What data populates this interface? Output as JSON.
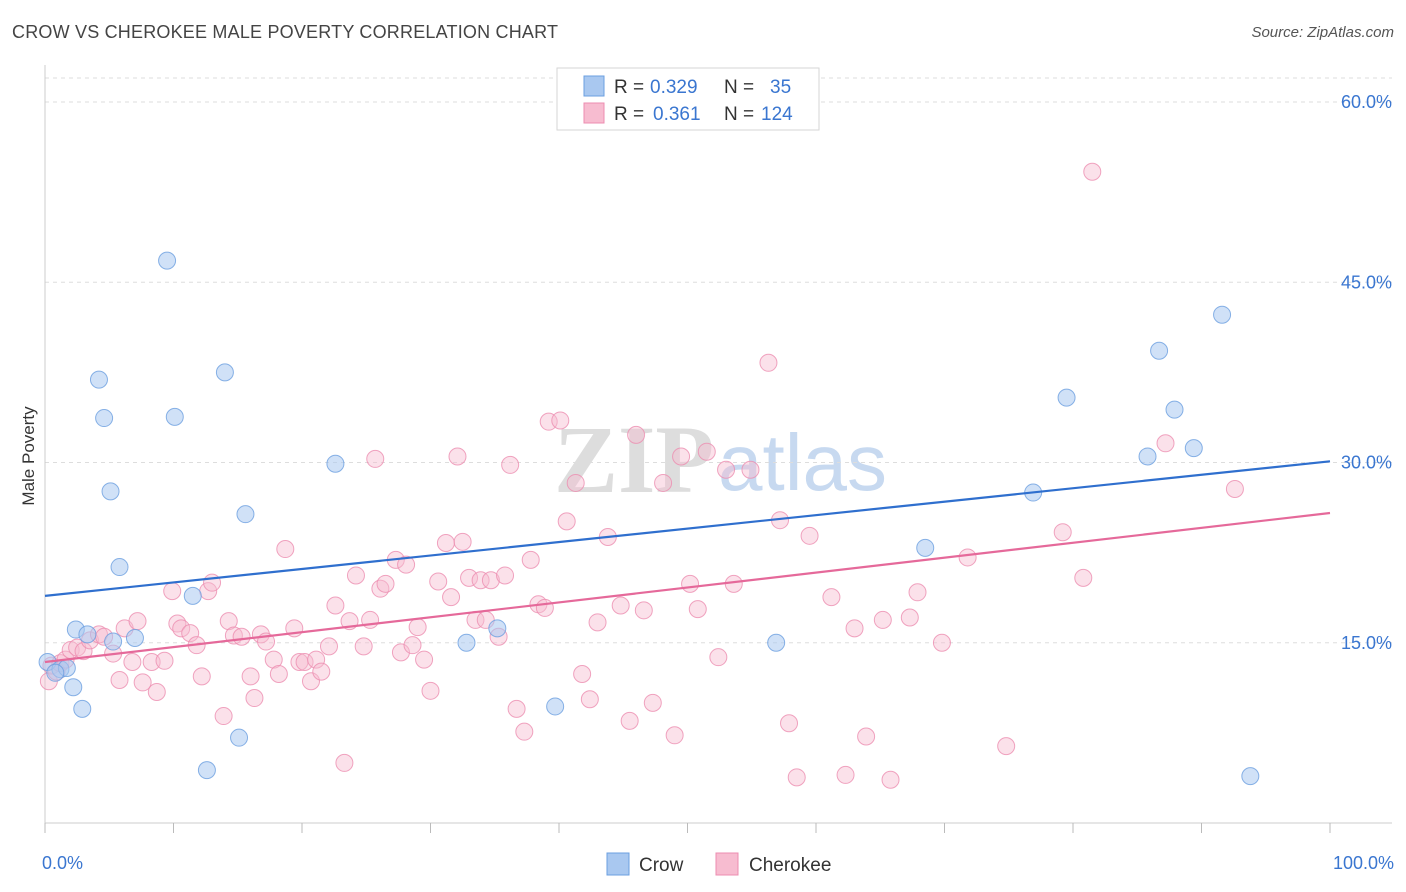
{
  "header": {
    "title": "CROW VS CHEROKEE MALE POVERTY CORRELATION CHART",
    "source": "Source: ZipAtlas.com"
  },
  "watermark": {
    "part1": "ZIP",
    "part2": "atlas"
  },
  "colors": {
    "crow_fill": "#a9c8f0",
    "crow_stroke": "#6b9fe0",
    "crow_line": "#2f6fce",
    "cherokee_fill": "#f7bcd0",
    "cherokee_stroke": "#ec8db0",
    "cherokee_line": "#e5699a",
    "tick_text": "#3a76d0",
    "grid": "#dddddd"
  },
  "legend": {
    "rows": [
      {
        "r_label": "R =",
        "r_value": "0.329",
        "n_label": "N =",
        "n_value": "35"
      },
      {
        "r_label": "R =",
        "r_value": "0.361",
        "n_label": "N =",
        "n_value": "124"
      }
    ]
  },
  "bottom_legend": [
    "Crow",
    "Cherokee"
  ],
  "chart_data": {
    "type": "scatter",
    "ylabel": "Male Poverty",
    "xlim": [
      0,
      100
    ],
    "ylim": [
      0,
      62
    ],
    "x_tick_labels": [
      "0.0%",
      "100.0%"
    ],
    "y_ticks": [
      15,
      30,
      45,
      60
    ],
    "y_tick_labels": [
      "15.0%",
      "30.0%",
      "45.0%",
      "60.0%"
    ],
    "grid": "horizontal dashed",
    "legend_position": "top-center",
    "series": [
      {
        "name": "Crow",
        "r": 0.329,
        "n": 35,
        "trend": [
          [
            0,
            18.9
          ],
          [
            100,
            30.1
          ]
        ],
        "points": [
          [
            0.2,
            13.4
          ],
          [
            1.2,
            12.8
          ],
          [
            1.7,
            12.9
          ],
          [
            2.2,
            11.3
          ],
          [
            2.4,
            16.1
          ],
          [
            2.9,
            9.5
          ],
          [
            3.3,
            15.7
          ],
          [
            4.2,
            36.9
          ],
          [
            4.6,
            33.7
          ],
          [
            5.1,
            27.6
          ],
          [
            5.3,
            15.1
          ],
          [
            5.8,
            21.3
          ],
          [
            7.0,
            15.4
          ],
          [
            9.5,
            46.8
          ],
          [
            10.1,
            33.8
          ],
          [
            11.5,
            18.9
          ],
          [
            12.6,
            4.4
          ],
          [
            14.0,
            37.5
          ],
          [
            15.1,
            7.1
          ],
          [
            15.6,
            25.7
          ],
          [
            22.6,
            29.9
          ],
          [
            32.8,
            15.0
          ],
          [
            35.2,
            16.2
          ],
          [
            39.7,
            9.7
          ],
          [
            56.9,
            15.0
          ],
          [
            68.5,
            22.9
          ],
          [
            76.9,
            27.5
          ],
          [
            79.5,
            35.4
          ],
          [
            85.8,
            30.5
          ],
          [
            86.7,
            39.3
          ],
          [
            87.9,
            34.4
          ],
          [
            89.4,
            31.2
          ],
          [
            91.6,
            42.3
          ],
          [
            93.8,
            3.9
          ],
          [
            0.8,
            12.5
          ]
        ]
      },
      {
        "name": "Cherokee",
        "r": 0.361,
        "n": 124,
        "trend": [
          [
            0,
            13.4
          ],
          [
            100,
            25.8
          ]
        ],
        "points": [
          [
            0.3,
            11.8
          ],
          [
            0.5,
            13.1
          ],
          [
            0.9,
            12.6
          ],
          [
            1.2,
            13.3
          ],
          [
            1.6,
            13.6
          ],
          [
            2.0,
            14.4
          ],
          [
            2.5,
            14.6
          ],
          [
            3.0,
            14.3
          ],
          [
            3.5,
            15.2
          ],
          [
            4.2,
            15.7
          ],
          [
            4.6,
            15.5
          ],
          [
            5.3,
            14.1
          ],
          [
            5.8,
            11.9
          ],
          [
            6.2,
            16.2
          ],
          [
            6.8,
            13.4
          ],
          [
            7.2,
            16.8
          ],
          [
            7.6,
            11.7
          ],
          [
            8.3,
            13.4
          ],
          [
            8.7,
            10.9
          ],
          [
            9.3,
            13.5
          ],
          [
            9.9,
            19.3
          ],
          [
            10.3,
            16.6
          ],
          [
            10.6,
            16.2
          ],
          [
            11.3,
            15.8
          ],
          [
            11.8,
            14.8
          ],
          [
            12.2,
            12.2
          ],
          [
            12.7,
            19.3
          ],
          [
            13.0,
            20.0
          ],
          [
            13.9,
            8.9
          ],
          [
            14.3,
            16.8
          ],
          [
            14.7,
            15.6
          ],
          [
            15.3,
            15.5
          ],
          [
            16.0,
            12.2
          ],
          [
            16.3,
            10.4
          ],
          [
            16.8,
            15.7
          ],
          [
            17.2,
            15.1
          ],
          [
            17.8,
            13.6
          ],
          [
            18.2,
            12.4
          ],
          [
            18.7,
            22.8
          ],
          [
            19.4,
            16.2
          ],
          [
            19.8,
            13.4
          ],
          [
            20.2,
            13.4
          ],
          [
            20.7,
            11.8
          ],
          [
            21.1,
            13.6
          ],
          [
            21.5,
            12.6
          ],
          [
            22.1,
            14.7
          ],
          [
            22.6,
            18.1
          ],
          [
            23.3,
            5.0
          ],
          [
            23.7,
            16.8
          ],
          [
            24.2,
            20.6
          ],
          [
            24.8,
            14.7
          ],
          [
            25.3,
            16.9
          ],
          [
            25.7,
            30.3
          ],
          [
            26.1,
            19.5
          ],
          [
            26.5,
            19.9
          ],
          [
            27.3,
            21.9
          ],
          [
            27.7,
            14.2
          ],
          [
            28.1,
            21.5
          ],
          [
            28.6,
            14.8
          ],
          [
            29.0,
            16.3
          ],
          [
            29.5,
            13.6
          ],
          [
            30.0,
            11.0
          ],
          [
            30.6,
            20.1
          ],
          [
            31.2,
            23.3
          ],
          [
            31.6,
            18.8
          ],
          [
            32.1,
            30.5
          ],
          [
            32.5,
            23.4
          ],
          [
            33.0,
            20.4
          ],
          [
            33.5,
            16.9
          ],
          [
            33.9,
            20.2
          ],
          [
            34.3,
            16.9
          ],
          [
            34.7,
            20.2
          ],
          [
            35.3,
            15.5
          ],
          [
            35.8,
            20.6
          ],
          [
            36.2,
            29.8
          ],
          [
            36.7,
            9.5
          ],
          [
            37.3,
            7.6
          ],
          [
            37.8,
            21.9
          ],
          [
            38.4,
            18.2
          ],
          [
            38.9,
            17.9
          ],
          [
            39.2,
            33.4
          ],
          [
            40.1,
            33.5
          ],
          [
            40.6,
            25.1
          ],
          [
            41.3,
            28.3
          ],
          [
            41.8,
            12.4
          ],
          [
            42.4,
            10.3
          ],
          [
            43.0,
            16.7
          ],
          [
            43.8,
            23.8
          ],
          [
            44.8,
            18.1
          ],
          [
            45.5,
            8.5
          ],
          [
            46.0,
            32.3
          ],
          [
            46.6,
            17.7
          ],
          [
            47.3,
            10.0
          ],
          [
            48.1,
            28.3
          ],
          [
            49.0,
            7.3
          ],
          [
            49.5,
            30.5
          ],
          [
            50.2,
            19.9
          ],
          [
            50.8,
            17.8
          ],
          [
            51.5,
            30.9
          ],
          [
            52.4,
            13.8
          ],
          [
            53.0,
            29.4
          ],
          [
            53.6,
            19.9
          ],
          [
            54.9,
            29.4
          ],
          [
            56.3,
            38.3
          ],
          [
            57.2,
            25.2
          ],
          [
            57.9,
            8.3
          ],
          [
            58.5,
            3.8
          ],
          [
            59.5,
            23.9
          ],
          [
            61.2,
            18.8
          ],
          [
            62.3,
            4.0
          ],
          [
            63.0,
            16.2
          ],
          [
            63.9,
            7.2
          ],
          [
            65.2,
            16.9
          ],
          [
            65.8,
            3.6
          ],
          [
            67.3,
            17.1
          ],
          [
            67.9,
            19.2
          ],
          [
            69.8,
            15.0
          ],
          [
            71.8,
            22.1
          ],
          [
            74.8,
            6.4
          ],
          [
            79.2,
            24.2
          ],
          [
            80.8,
            20.4
          ],
          [
            81.5,
            54.2
          ],
          [
            87.2,
            31.6
          ],
          [
            92.6,
            27.8
          ]
        ]
      }
    ]
  }
}
